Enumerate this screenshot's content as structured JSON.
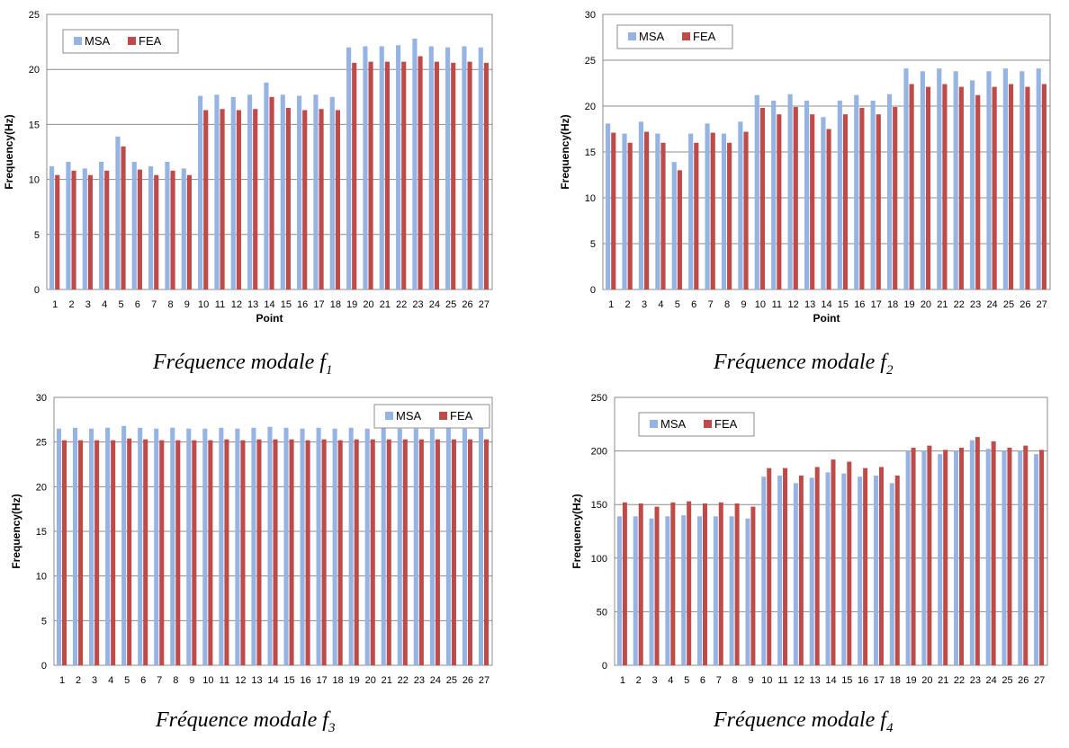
{
  "captions": [
    {
      "text": "Fréquence modale f",
      "sub": "1"
    },
    {
      "text": "Fréquence modale f",
      "sub": "2"
    },
    {
      "text": "Fréquence modale f",
      "sub": "3"
    },
    {
      "text": "Fréquence modale f",
      "sub": "4"
    }
  ],
  "colors": {
    "MSA": "#95B3E3",
    "FEA": "#BE4B48"
  },
  "chart_data": [
    {
      "type": "bar",
      "xlabel": "Point",
      "ylabel": "Frequency(Hz)",
      "ylim": [
        0,
        25
      ],
      "yticks": [
        0,
        5,
        10,
        15,
        20,
        25
      ],
      "grid": true,
      "legend": "top-left",
      "categories": [
        "1",
        "2",
        "3",
        "4",
        "5",
        "6",
        "7",
        "8",
        "9",
        "10",
        "11",
        "12",
        "13",
        "14",
        "15",
        "16",
        "17",
        "18",
        "19",
        "20",
        "21",
        "22",
        "23",
        "24",
        "25",
        "26",
        "27"
      ],
      "series": [
        {
          "name": "MSA",
          "values": [
            11.2,
            11.6,
            11.0,
            11.6,
            13.9,
            11.6,
            11.2,
            11.6,
            11.0,
            17.6,
            17.7,
            17.5,
            17.7,
            18.8,
            17.7,
            17.6,
            17.7,
            17.5,
            22.0,
            22.1,
            22.1,
            22.2,
            22.8,
            22.1,
            22.0,
            22.1,
            22.0
          ]
        },
        {
          "name": "FEA",
          "values": [
            10.4,
            10.8,
            10.4,
            10.8,
            13.0,
            10.9,
            10.4,
            10.8,
            10.4,
            16.3,
            16.4,
            16.3,
            16.4,
            17.5,
            16.5,
            16.3,
            16.4,
            16.3,
            20.6,
            20.7,
            20.7,
            20.7,
            21.2,
            20.7,
            20.6,
            20.7,
            20.6
          ]
        }
      ]
    },
    {
      "type": "bar",
      "xlabel": "Point",
      "ylabel": "Frequency(Hz)",
      "ylim": [
        0,
        30
      ],
      "yticks": [
        0,
        5,
        10,
        15,
        20,
        25,
        30
      ],
      "grid": true,
      "legend": "top-left",
      "categories": [
        "1",
        "2",
        "3",
        "4",
        "5",
        "6",
        "7",
        "8",
        "9",
        "10",
        "11",
        "12",
        "13",
        "14",
        "15",
        "16",
        "17",
        "18",
        "19",
        "20",
        "21",
        "22",
        "23",
        "24",
        "25",
        "26",
        "27"
      ],
      "series": [
        {
          "name": "MSA",
          "values": [
            18.1,
            17.0,
            18.3,
            17.0,
            13.9,
            17.0,
            18.1,
            17.0,
            18.3,
            21.2,
            20.6,
            21.3,
            20.6,
            18.8,
            20.6,
            21.2,
            20.6,
            21.3,
            24.1,
            23.8,
            24.1,
            23.8,
            22.8,
            23.8,
            24.1,
            23.8,
            24.1
          ]
        },
        {
          "name": "FEA",
          "values": [
            17.1,
            16.0,
            17.2,
            16.0,
            13.0,
            16.0,
            17.1,
            16.0,
            17.2,
            19.8,
            19.1,
            19.9,
            19.1,
            17.5,
            19.1,
            19.8,
            19.1,
            19.9,
            22.4,
            22.1,
            22.4,
            22.1,
            21.2,
            22.1,
            22.4,
            22.1,
            22.4
          ]
        }
      ]
    },
    {
      "type": "bar",
      "xlabel": "Point",
      "ylabel": "Frequency(Hz)",
      "ylim": [
        0,
        30
      ],
      "yticks": [
        0,
        5,
        10,
        15,
        20,
        25,
        30
      ],
      "grid": true,
      "legend": "top-right",
      "categories": [
        "1",
        "2",
        "3",
        "4",
        "5",
        "6",
        "7",
        "8",
        "9",
        "10",
        "11",
        "12",
        "13",
        "14",
        "15",
        "16",
        "17",
        "18",
        "19",
        "20",
        "21",
        "22",
        "23",
        "24",
        "25",
        "26",
        "27"
      ],
      "series": [
        {
          "name": "MSA",
          "values": [
            26.5,
            26.6,
            26.5,
            26.6,
            26.8,
            26.6,
            26.5,
            26.6,
            26.5,
            26.5,
            26.6,
            26.5,
            26.6,
            26.7,
            26.6,
            26.5,
            26.6,
            26.5,
            26.6,
            26.5,
            26.6,
            26.5,
            26.5,
            26.5,
            26.6,
            26.5,
            26.6
          ]
        },
        {
          "name": "FEA",
          "values": [
            25.2,
            25.2,
            25.2,
            25.2,
            25.4,
            25.3,
            25.2,
            25.2,
            25.2,
            25.2,
            25.3,
            25.2,
            25.3,
            25.3,
            25.3,
            25.2,
            25.3,
            25.2,
            25.3,
            25.3,
            25.3,
            25.3,
            25.3,
            25.3,
            25.3,
            25.3,
            25.3
          ]
        }
      ]
    },
    {
      "type": "bar",
      "xlabel": "Point",
      "ylabel": "Frequency(Hz)",
      "ylim": [
        0,
        250
      ],
      "yticks": [
        0,
        50,
        100,
        150,
        200,
        250
      ],
      "grid": true,
      "legend": "top-left",
      "categories": [
        "1",
        "2",
        "3",
        "4",
        "5",
        "6",
        "7",
        "8",
        "9",
        "10",
        "11",
        "12",
        "13",
        "14",
        "15",
        "16",
        "17",
        "18",
        "19",
        "20",
        "21",
        "22",
        "23",
        "24",
        "25",
        "26",
        "27"
      ],
      "series": [
        {
          "name": "MSA",
          "values": [
            139,
            139,
            137,
            139,
            140,
            139,
            139,
            139,
            137,
            176,
            177,
            170,
            175,
            180,
            179,
            176,
            177,
            170,
            200,
            200,
            197,
            200,
            210,
            202,
            200,
            200,
            197
          ]
        },
        {
          "name": "FEA",
          "values": [
            152,
            151,
            148,
            152,
            153,
            151,
            152,
            151,
            148,
            184,
            184,
            177,
            185,
            192,
            190,
            184,
            185,
            177,
            203,
            205,
            201,
            203,
            213,
            209,
            203,
            205,
            201
          ]
        }
      ]
    }
  ]
}
